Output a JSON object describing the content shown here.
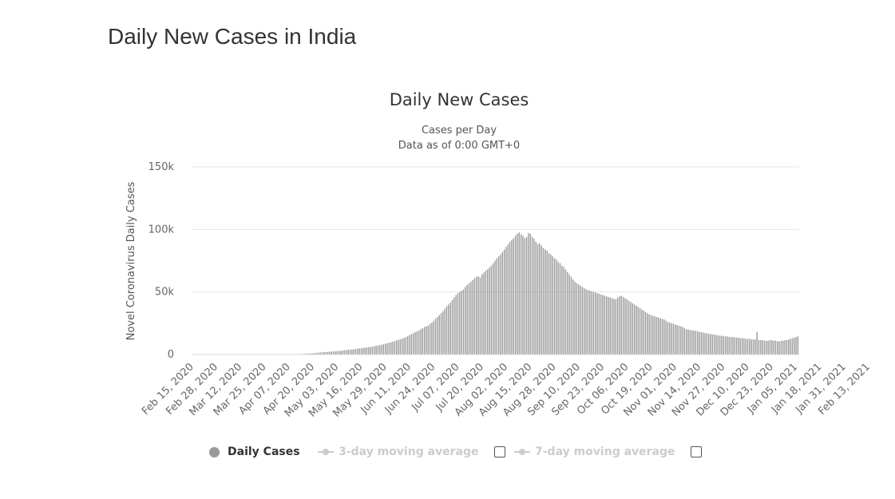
{
  "page": {
    "heading": "Daily New Cases in India"
  },
  "chart_data": {
    "type": "bar",
    "title": "Daily New Cases",
    "subtitle": [
      "Cases per Day",
      "Data as of 0:00 GMT+0"
    ],
    "ylabel": "Novel Coronavirus Daily Cases",
    "xlabel": "",
    "ylim": [
      0,
      150000
    ],
    "yticks": [
      0,
      50000,
      100000,
      150000
    ],
    "ytick_labels": [
      "0",
      "50k",
      "100k",
      "150k"
    ],
    "grid": true,
    "x_tick_labels": [
      "Feb 15, 2020",
      "Feb 28, 2020",
      "Mar 12, 2020",
      "Mar 25, 2020",
      "Apr 07, 2020",
      "Apr 20, 2020",
      "May 03, 2020",
      "May 16, 2020",
      "May 29, 2020",
      "Jun 11, 2020",
      "Jun 24, 2020",
      "Jul 07, 2020",
      "Jul 20, 2020",
      "Aug 02, 2020",
      "Aug 15, 2020",
      "Aug 28, 2020",
      "Sep 10, 2020",
      "Sep 23, 2020",
      "Oct 06, 2020",
      "Oct 19, 2020",
      "Nov 01, 2020",
      "Nov 14, 2020",
      "Nov 27, 2020",
      "Dec 10, 2020",
      "Dec 23, 2020",
      "Jan 05, 2021",
      "Jan 18, 2021",
      "Jan 31, 2021",
      "Feb 13, 2021"
    ],
    "start_date": "2020-02-15",
    "series": [
      {
        "name": "Daily Cases",
        "color": "#999999",
        "values": [
          0,
          0,
          0,
          0,
          0,
          0,
          0,
          0,
          0,
          0,
          0,
          0,
          0,
          0,
          0,
          0,
          0,
          0,
          0,
          0,
          0,
          0,
          0,
          0,
          0,
          0,
          0,
          0,
          0,
          0,
          3,
          3,
          5,
          8,
          5,
          7,
          8,
          6,
          6,
          10,
          14,
          18,
          15,
          20,
          25,
          30,
          35,
          40,
          50,
          60,
          80,
          100,
          120,
          150,
          180,
          220,
          260,
          300,
          350,
          420,
          500,
          600,
          700,
          800,
          900,
          1000,
          1100,
          1300,
          1500,
          1700,
          1800,
          1900,
          2000,
          2100,
          2200,
          2300,
          2400,
          2500,
          2700,
          2800,
          3000,
          3200,
          3400,
          3600,
          3800,
          3900,
          4000,
          4200,
          4400,
          4600,
          4800,
          5000,
          5200,
          5400,
          5600,
          5800,
          6000,
          6300,
          6600,
          6900,
          7200,
          7500,
          7800,
          8200,
          8600,
          9000,
          9400,
          9800,
          10200,
          10700,
          11200,
          11700,
          12200,
          12700,
          13300,
          14000,
          14800,
          15500,
          16300,
          17000,
          17800,
          18500,
          19200,
          20000,
          21000,
          22000,
          22500,
          23000,
          24500,
          25500,
          27000,
          28500,
          30000,
          31500,
          33000,
          34500,
          36500,
          38500,
          40000,
          41500,
          43500,
          45500,
          47500,
          49000,
          50000,
          51000,
          52000,
          54000,
          55500,
          57000,
          58000,
          59500,
          61000,
          62000,
          62500,
          61500,
          64000,
          65500,
          67000,
          68000,
          69500,
          71000,
          73000,
          75000,
          77000,
          78500,
          80000,
          82000,
          84000,
          86000,
          88000,
          90000,
          91500,
          93000,
          95000,
          96500,
          97500,
          96000,
          95000,
          93000,
          94000,
          97000,
          96500,
          94000,
          92500,
          90000,
          88000,
          89000,
          87000,
          85000,
          84000,
          83000,
          81000,
          80000,
          78500,
          77000,
          76000,
          74000,
          73000,
          71000,
          70000,
          68000,
          66000,
          64000,
          62000,
          60000,
          58000,
          57000,
          56000,
          55000,
          54000,
          53000,
          52000,
          51500,
          51000,
          50500,
          50000,
          49500,
          49000,
          48500,
          48000,
          47500,
          47000,
          46500,
          46000,
          45500,
          45000,
          44500,
          44000,
          45500,
          46500,
          47000,
          46000,
          45000,
          44000,
          43000,
          42000,
          41000,
          40000,
          39000,
          38000,
          37000,
          36000,
          35000,
          34000,
          33000,
          32000,
          31500,
          31000,
          30500,
          30000,
          29500,
          29000,
          28500,
          28000,
          27000,
          26000,
          25500,
          25000,
          24500,
          24000,
          23500,
          23000,
          22500,
          22000,
          21000,
          20000,
          20000,
          19500,
          19500,
          19000,
          19000,
          18500,
          18000,
          18000,
          17500,
          17000,
          17000,
          16500,
          16500,
          16000,
          16000,
          15500,
          15500,
          15000,
          15000,
          14500,
          14500,
          14500,
          14000,
          14000,
          14000,
          13500,
          13500,
          13500,
          13000,
          13000,
          13000,
          12500,
          12500,
          12500,
          12000,
          12000,
          12000,
          18000,
          11500,
          11500,
          11500,
          11000,
          11000,
          11000,
          11500,
          11500,
          11000,
          11000,
          10500,
          10500,
          11000,
          11000,
          11500,
          11500,
          12000,
          12500,
          13000,
          13500,
          14000,
          14500
        ]
      },
      {
        "name": "3-day moving average",
        "color": "#cccccc",
        "values": []
      },
      {
        "name": "7-day moving average",
        "color": "#cccccc",
        "values": []
      }
    ]
  },
  "legend": {
    "items": [
      {
        "label": "Daily Cases",
        "color": "#999999",
        "active": true
      },
      {
        "label": "3-day moving average",
        "color": "#cccccc",
        "active": false
      },
      {
        "label": "7-day moving average",
        "color": "#cccccc",
        "active": false
      }
    ]
  }
}
